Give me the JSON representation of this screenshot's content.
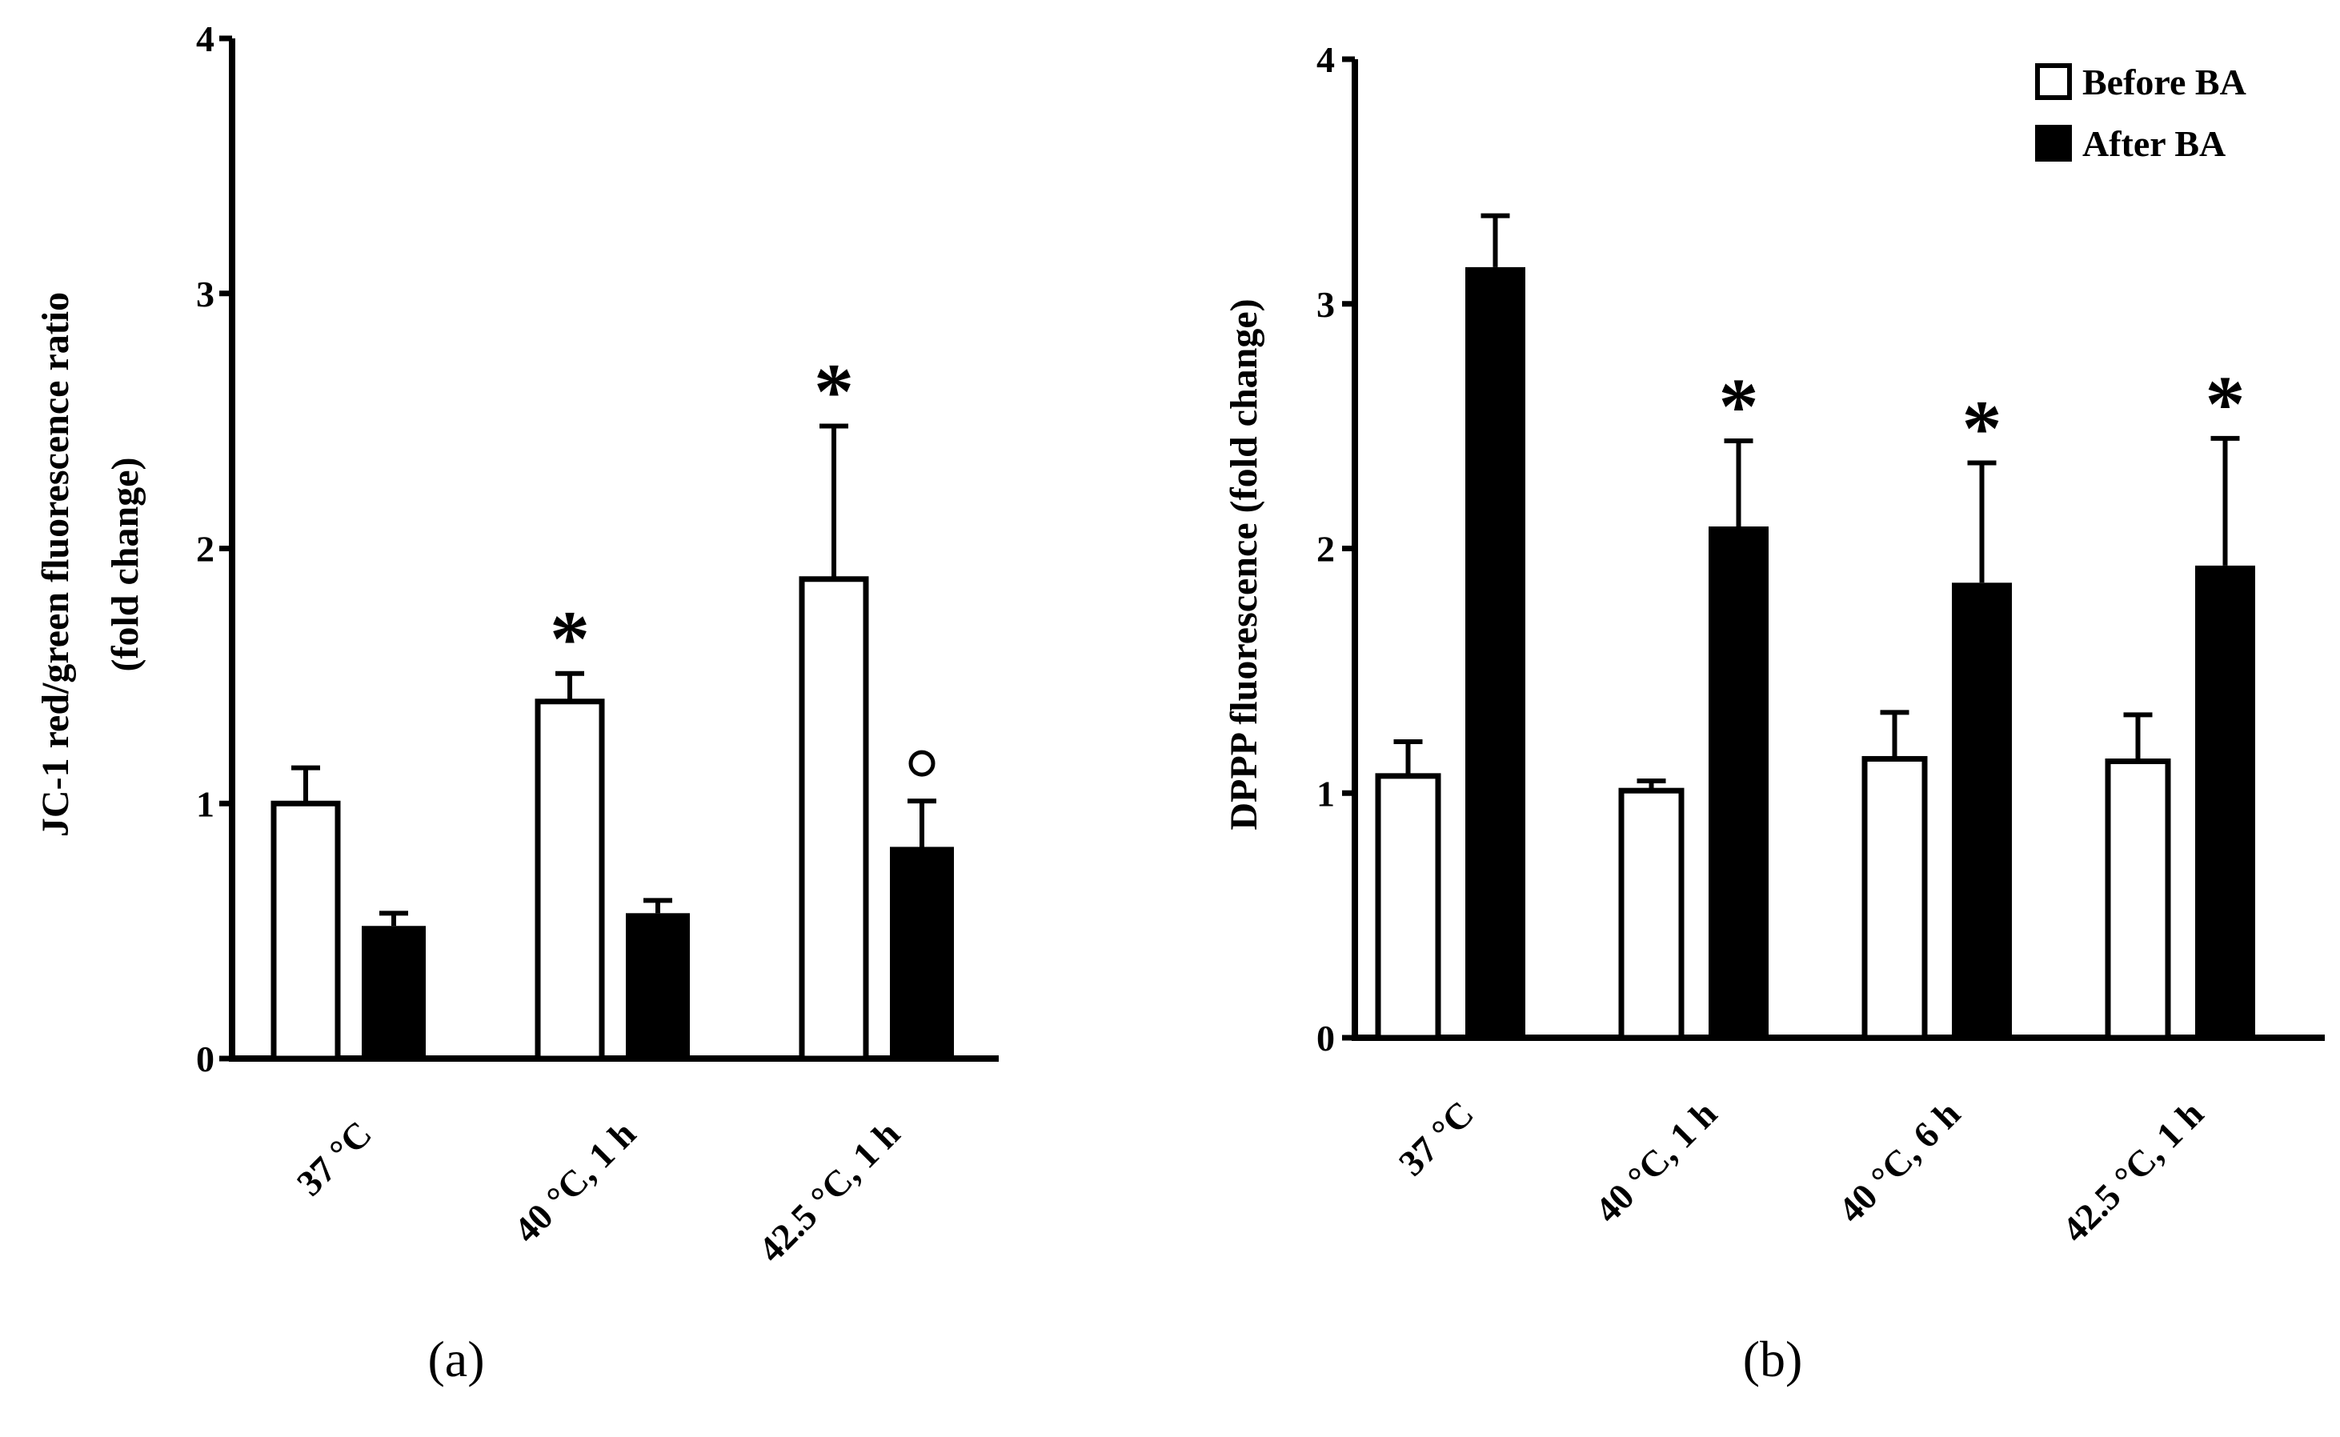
{
  "chart_data": [
    {
      "type": "bar",
      "panel_label": "(a)",
      "ylabel": [
        "JC-1 red/green fluorescence ratio",
        "(fold change)"
      ],
      "ylim": [
        0,
        4
      ],
      "yticks": [
        "0",
        "1",
        "2",
        "3",
        "4"
      ],
      "categories": [
        "37 °C",
        "40 °C, 1 h",
        "42.5 °C, 1 h"
      ],
      "series": [
        {
          "name": "Before BA",
          "color": "#ffffff",
          "values": [
            1.0,
            1.4,
            1.88
          ],
          "errors": [
            0.14,
            0.11,
            0.6
          ]
        },
        {
          "name": "After BA",
          "color": "#000000",
          "values": [
            0.52,
            0.57,
            0.83
          ],
          "errors": [
            0.05,
            0.05,
            0.18
          ]
        }
      ],
      "annotations": [
        {
          "category": 1,
          "series": 0,
          "symbol": "*"
        },
        {
          "category": 2,
          "series": 0,
          "symbol": "*"
        },
        {
          "category": 2,
          "series": 1,
          "symbol": "○"
        }
      ]
    },
    {
      "type": "bar",
      "panel_label": "(b)",
      "ylabel": [
        "DPPP fluorescence (fold change)"
      ],
      "ylim": [
        0,
        4
      ],
      "yticks": [
        "0",
        "1",
        "2",
        "3",
        "4"
      ],
      "categories": [
        "37 °C",
        "40 °C, 1 h",
        "40 °C, 6 h",
        "42.5 °C, 1 h"
      ],
      "series": [
        {
          "name": "Before BA",
          "color": "#ffffff",
          "values": [
            1.07,
            1.01,
            1.14,
            1.13
          ],
          "errors": [
            0.14,
            0.04,
            0.19,
            0.19
          ]
        },
        {
          "name": "After BA",
          "color": "#000000",
          "values": [
            3.15,
            2.09,
            1.86,
            1.93
          ],
          "errors": [
            0.21,
            0.35,
            0.49,
            0.52
          ]
        }
      ],
      "annotations": [
        {
          "category": 1,
          "series": 1,
          "symbol": "*"
        },
        {
          "category": 2,
          "series": 1,
          "symbol": "*"
        },
        {
          "category": 3,
          "series": 1,
          "symbol": "*"
        }
      ],
      "legend": {
        "position": "top-right",
        "entries": [
          "Before BA",
          "After BA"
        ]
      }
    }
  ]
}
